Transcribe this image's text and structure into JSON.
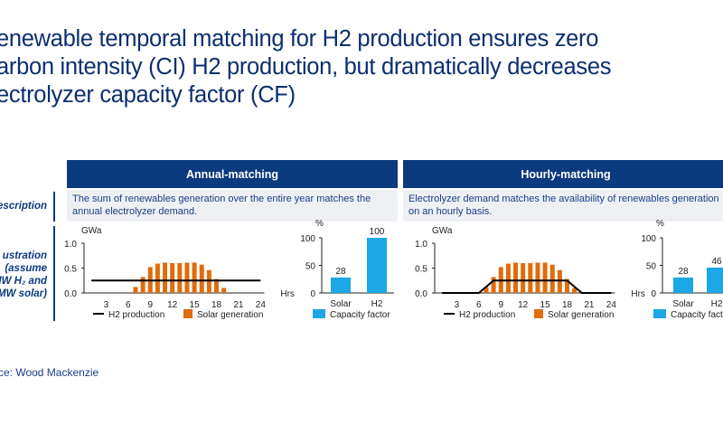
{
  "title": "enewable temporal matching for H2 production ensures zero\narbon intensity (CI) H2 production, but dramatically decreases\nectrolyzer capacity factor (CF)",
  "row_labels": {
    "description": "escription",
    "illustration": [
      "ustration",
      "(assume",
      "MW H₂ and",
      "MW solar)"
    ]
  },
  "panels": [
    {
      "header": "Annual-matching",
      "description": "The sum of renewables generation over the entire year matches the annual electrolyzer demand."
    },
    {
      "header": "Hourly-matching",
      "description": "Electrolyzer demand matches the availability of renewables generation on an hourly basis."
    }
  ],
  "source": "ce: Wood Mackenzie",
  "colors": {
    "navy": "#0b3a7e",
    "solar": "#e06c0a",
    "capacity": "#1ca7e6",
    "line": "#000000"
  },
  "chart_data": [
    {
      "type": "bar+line",
      "panel": "Annual-matching",
      "ylabel": "GWa",
      "xlabel": "Hrs",
      "ylim": [
        0,
        1.0
      ],
      "yticks": [
        "0.0",
        "0.5",
        "1.0"
      ],
      "xlim": [
        0,
        24
      ],
      "xticks": [
        "3",
        "6",
        "9",
        "12",
        "15",
        "18",
        "21",
        "24"
      ],
      "series": [
        {
          "name": "Solar generation",
          "type": "bar",
          "x": [
            7,
            8,
            9,
            10,
            11,
            12,
            13,
            14,
            15,
            16,
            17,
            18,
            19
          ],
          "values": [
            0.12,
            0.32,
            0.52,
            0.59,
            0.61,
            0.6,
            0.6,
            0.61,
            0.61,
            0.57,
            0.46,
            0.28,
            0.1
          ]
        },
        {
          "name": "H2 production",
          "type": "line",
          "x": [
            1,
            24
          ],
          "values": [
            0.25,
            0.25
          ]
        }
      ]
    },
    {
      "type": "bar",
      "panel": "Annual-matching",
      "ylabel": "%",
      "ylim": [
        0,
        100
      ],
      "yticks": [
        "0",
        "50",
        "100"
      ],
      "categories": [
        "Solar",
        "H2"
      ],
      "values": [
        28,
        100
      ],
      "data_labels": [
        "28",
        "100"
      ],
      "legend": [
        "Capacity factor"
      ]
    },
    {
      "type": "bar+line",
      "panel": "Hourly-matching",
      "ylabel": "GWa",
      "xlabel": "Hrs",
      "ylim": [
        0,
        1.0
      ],
      "yticks": [
        "0.0",
        "0.5",
        "1.0"
      ],
      "xlim": [
        0,
        24
      ],
      "xticks": [
        "3",
        "6",
        "9",
        "12",
        "15",
        "18",
        "21",
        "24"
      ],
      "series": [
        {
          "name": "Solar generation",
          "type": "bar",
          "x": [
            7,
            8,
            9,
            10,
            11,
            12,
            13,
            14,
            15,
            16,
            17,
            18,
            19
          ],
          "values": [
            0.12,
            0.32,
            0.52,
            0.59,
            0.61,
            0.6,
            0.6,
            0.61,
            0.61,
            0.57,
            0.46,
            0.28,
            0.1
          ]
        },
        {
          "name": "H2 production",
          "type": "line",
          "x": [
            1,
            6,
            8,
            18,
            20,
            24
          ],
          "values": [
            0,
            0,
            0.25,
            0.25,
            0,
            0
          ]
        }
      ]
    },
    {
      "type": "bar",
      "panel": "Hourly-matching",
      "ylabel": "%",
      "ylim": [
        0,
        100
      ],
      "yticks": [
        "0",
        "50",
        "100"
      ],
      "categories": [
        "Solar",
        "H2"
      ],
      "values": [
        28,
        46
      ],
      "data_labels": [
        "28",
        "46"
      ],
      "legend": [
        "Capacity factor"
      ]
    }
  ]
}
